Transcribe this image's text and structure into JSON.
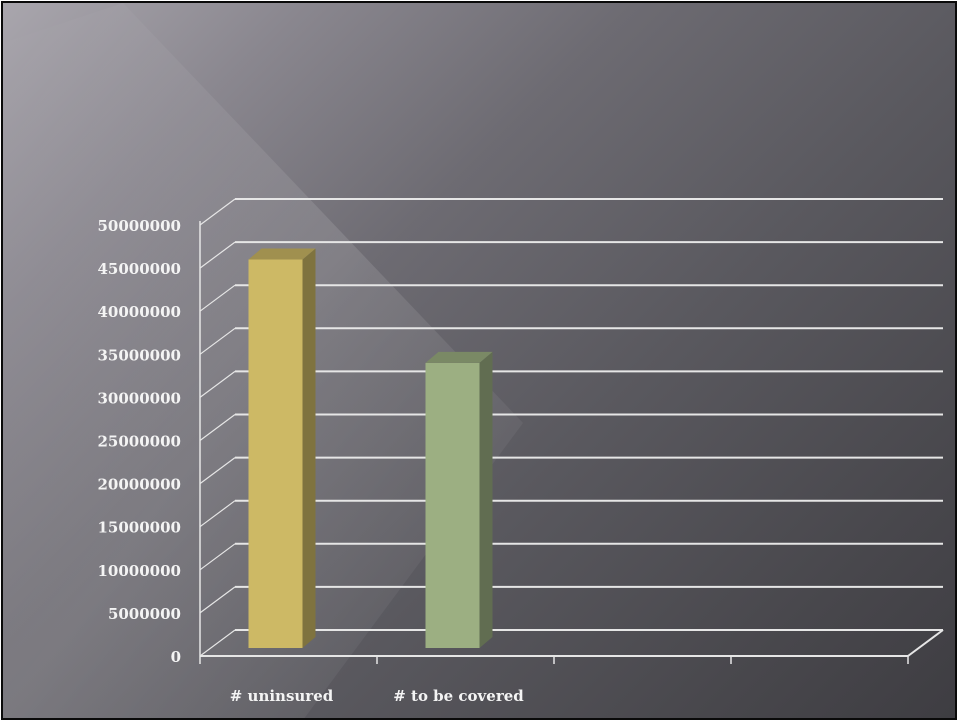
{
  "chart_data": {
    "type": "bar",
    "categories": [
      "# uninsured",
      "# to be covered"
    ],
    "values": [
      46000000,
      34000000
    ],
    "bar_colors": [
      "#cdb965",
      "#9caf82"
    ],
    "ylim": [
      0,
      50000000
    ],
    "y_ticks": [
      "0",
      "5000000",
      "10000000",
      "15000000",
      "20000000",
      "25000000",
      "30000000",
      "35000000",
      "40000000",
      "45000000",
      "50000000"
    ],
    "style": "3d",
    "grid": true,
    "legend": "none"
  }
}
